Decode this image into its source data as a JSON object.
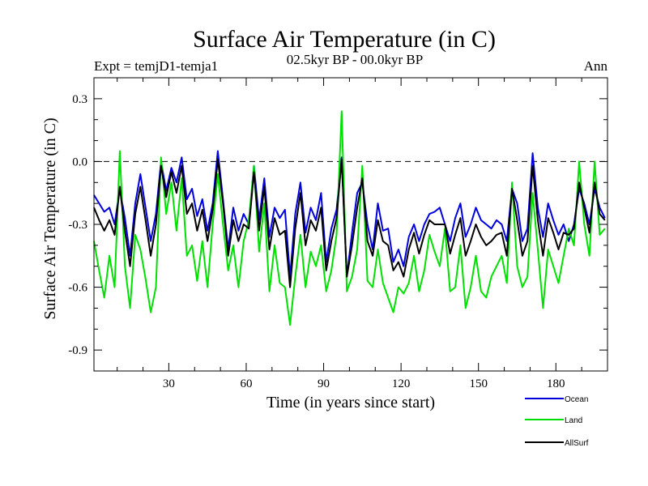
{
  "chart_data": {
    "type": "line",
    "title": "Surface Air Temperature (in C)",
    "subtitle_left": "Expt = temjD1-temja1",
    "subtitle_center": "02.5kyr BP - 00.0kyr BP",
    "subtitle_right": "Ann",
    "xlabel": "Time (in years since start)",
    "ylabel": "Surface Air Temperature (in C)",
    "xlim": [
      1,
      200
    ],
    "ylim": [
      -1.0,
      0.4
    ],
    "xticks": [
      30,
      60,
      90,
      120,
      150,
      180
    ],
    "xtick_labels": [
      "30",
      "60",
      "90",
      "120",
      "150",
      "180"
    ],
    "yticks": [
      0.3,
      0.0,
      -0.3,
      -0.6,
      -0.9
    ],
    "ytick_labels": [
      "0.3",
      "0.0",
      "-0.3",
      "-0.6",
      "-0.9"
    ],
    "reference_line": 0.0,
    "x": [
      1,
      3,
      5,
      7,
      9,
      11,
      13,
      15,
      17,
      19,
      21,
      23,
      25,
      27,
      29,
      31,
      33,
      35,
      37,
      39,
      41,
      43,
      45,
      47,
      49,
      51,
      53,
      55,
      57,
      59,
      61,
      63,
      65,
      67,
      69,
      71,
      73,
      75,
      77,
      79,
      81,
      83,
      85,
      87,
      89,
      91,
      93,
      95,
      97,
      99,
      101,
      103,
      105,
      107,
      109,
      111,
      113,
      115,
      117,
      119,
      121,
      123,
      125,
      127,
      129,
      131,
      133,
      135,
      137,
      139,
      141,
      143,
      145,
      147,
      149,
      151,
      153,
      155,
      157,
      159,
      161,
      163,
      165,
      167,
      169,
      171,
      173,
      175,
      177,
      179,
      181,
      183,
      185,
      187,
      189,
      191,
      193,
      195,
      197,
      199
    ],
    "series": [
      {
        "name": "Ocean",
        "color": "#0000dd",
        "values": [
          -0.16,
          -0.2,
          -0.24,
          -0.22,
          -0.3,
          -0.13,
          -0.27,
          -0.45,
          -0.2,
          -0.06,
          -0.22,
          -0.38,
          -0.25,
          0.0,
          -0.14,
          -0.03,
          -0.1,
          0.02,
          -0.18,
          -0.13,
          -0.26,
          -0.18,
          -0.33,
          -0.2,
          0.05,
          -0.18,
          -0.42,
          -0.22,
          -0.33,
          -0.25,
          -0.3,
          -0.02,
          -0.28,
          -0.08,
          -0.36,
          -0.22,
          -0.27,
          -0.23,
          -0.55,
          -0.25,
          -0.1,
          -0.34,
          -0.22,
          -0.28,
          -0.15,
          -0.48,
          -0.32,
          -0.23,
          0.02,
          -0.55,
          -0.34,
          -0.15,
          -0.1,
          -0.3,
          -0.42,
          -0.2,
          -0.33,
          -0.32,
          -0.48,
          -0.42,
          -0.5,
          -0.36,
          -0.3,
          -0.38,
          -0.3,
          -0.25,
          -0.24,
          -0.22,
          -0.3,
          -0.38,
          -0.27,
          -0.2,
          -0.36,
          -0.3,
          -0.22,
          -0.28,
          -0.3,
          -0.32,
          -0.28,
          -0.3,
          -0.38,
          -0.13,
          -0.2,
          -0.38,
          -0.32,
          0.04,
          -0.22,
          -0.36,
          -0.2,
          -0.28,
          -0.35,
          -0.3,
          -0.38,
          -0.3,
          -0.13,
          -0.2,
          -0.3,
          -0.13,
          -0.22,
          -0.27
        ]
      },
      {
        "name": "Land",
        "color": "#00e000",
        "values": [
          -0.38,
          -0.52,
          -0.65,
          -0.45,
          -0.6,
          0.05,
          -0.5,
          -0.7,
          -0.35,
          -0.42,
          -0.56,
          -0.72,
          -0.6,
          0.02,
          -0.25,
          -0.1,
          -0.33,
          -0.08,
          -0.45,
          -0.4,
          -0.57,
          -0.38,
          -0.6,
          -0.3,
          -0.06,
          -0.3,
          -0.52,
          -0.4,
          -0.6,
          -0.38,
          -0.28,
          -0.02,
          -0.43,
          -0.2,
          -0.62,
          -0.4,
          -0.58,
          -0.6,
          -0.78,
          -0.55,
          -0.35,
          -0.6,
          -0.43,
          -0.5,
          -0.4,
          -0.62,
          -0.52,
          -0.35,
          0.24,
          -0.62,
          -0.55,
          -0.42,
          -0.02,
          -0.57,
          -0.6,
          -0.42,
          -0.58,
          -0.65,
          -0.72,
          -0.6,
          -0.63,
          -0.58,
          -0.45,
          -0.62,
          -0.52,
          -0.35,
          -0.43,
          -0.5,
          -0.32,
          -0.62,
          -0.6,
          -0.4,
          -0.7,
          -0.6,
          -0.45,
          -0.62,
          -0.65,
          -0.55,
          -0.5,
          -0.45,
          -0.58,
          -0.1,
          -0.5,
          -0.6,
          -0.55,
          -0.15,
          -0.42,
          -0.7,
          -0.42,
          -0.5,
          -0.58,
          -0.45,
          -0.32,
          -0.4,
          0.0,
          -0.3,
          -0.45,
          0.0,
          -0.35,
          -0.32
        ]
      },
      {
        "name": "AllSurf",
        "color": "#000000",
        "values": [
          -0.22,
          -0.28,
          -0.33,
          -0.28,
          -0.35,
          -0.12,
          -0.33,
          -0.5,
          -0.25,
          -0.12,
          -0.28,
          -0.45,
          -0.3,
          -0.02,
          -0.17,
          -0.05,
          -0.15,
          -0.02,
          -0.25,
          -0.2,
          -0.33,
          -0.23,
          -0.38,
          -0.23,
          0.01,
          -0.2,
          -0.45,
          -0.28,
          -0.38,
          -0.3,
          -0.32,
          -0.05,
          -0.33,
          -0.12,
          -0.42,
          -0.27,
          -0.35,
          -0.33,
          -0.6,
          -0.32,
          -0.15,
          -0.4,
          -0.28,
          -0.33,
          -0.22,
          -0.52,
          -0.38,
          -0.27,
          0.01,
          -0.55,
          -0.4,
          -0.22,
          -0.08,
          -0.38,
          -0.45,
          -0.28,
          -0.38,
          -0.4,
          -0.52,
          -0.48,
          -0.55,
          -0.42,
          -0.34,
          -0.44,
          -0.35,
          -0.28,
          -0.3,
          -0.3,
          -0.3,
          -0.44,
          -0.35,
          -0.27,
          -0.45,
          -0.38,
          -0.3,
          -0.36,
          -0.4,
          -0.38,
          -0.35,
          -0.34,
          -0.45,
          -0.13,
          -0.28,
          -0.45,
          -0.38,
          -0.02,
          -0.28,
          -0.45,
          -0.27,
          -0.34,
          -0.42,
          -0.34,
          -0.35,
          -0.32,
          -0.1,
          -0.22,
          -0.34,
          -0.1,
          -0.25,
          -0.28
        ]
      }
    ],
    "legend_position": "bottom-right"
  }
}
